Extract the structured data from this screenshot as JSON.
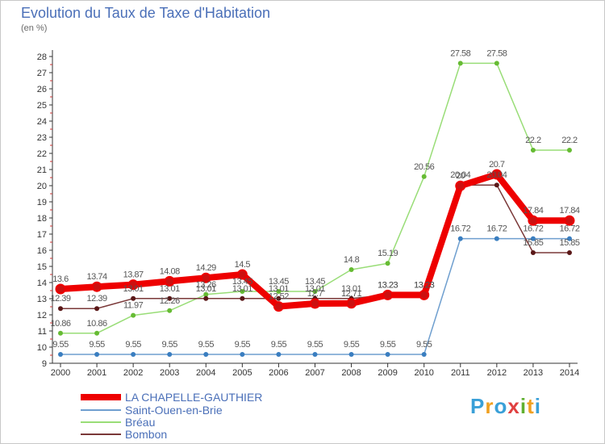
{
  "title": "Evolution du Taux de Taxe d'Habitation",
  "unit_label": "(en %)",
  "brand": {
    "letters": [
      "P",
      "r",
      "o",
      "x",
      "i",
      "t",
      "i"
    ],
    "colors": [
      "#3aa0d8",
      "#f0a020",
      "#3aa0d8",
      "#e04040",
      "#60b030",
      "#f0a020",
      "#3aa0d8"
    ]
  },
  "chart_data": {
    "type": "line",
    "x": [
      "2000",
      "2001",
      "2002",
      "2003",
      "2004",
      "2005",
      "2006",
      "2007",
      "2008",
      "2009",
      "2010",
      "2011",
      "2012",
      "2013",
      "2014"
    ],
    "ylim": [
      9,
      28
    ],
    "yticks": [
      "9",
      "10",
      "11",
      "12",
      "13",
      "14",
      "15",
      "16",
      "17",
      "18",
      "19",
      "20",
      "21",
      "22",
      "23",
      "24",
      "25",
      "26",
      "27",
      "28"
    ],
    "grid": false,
    "legend_position": "bottom-left",
    "series": [
      {
        "name": "LA CHAPELLE-GAUTHIER",
        "color": "#ee0000",
        "marker_color": "#cc1010",
        "values": [
          13.6,
          13.74,
          13.87,
          14.08,
          14.29,
          14.5,
          12.52,
          12.7,
          12.71,
          13.23,
          13.23,
          19.99,
          20.7,
          17.84,
          17.84
        ],
        "labels": [
          "13.6",
          "13.74",
          "13.87",
          "14.08",
          "14.29",
          "14.5",
          "12.52",
          "12.7",
          "12.71",
          "13.23",
          "13.23",
          "20",
          "20.7",
          "17.84",
          "17.84"
        ]
      },
      {
        "name": "Saint-Ouen-en-Brie",
        "color": "#6f9fcf",
        "marker_color": "#3a7ec0",
        "values": [
          9.55,
          9.55,
          9.55,
          9.55,
          9.55,
          9.55,
          9.55,
          9.55,
          9.55,
          9.55,
          9.55,
          16.72,
          16.72,
          16.72,
          16.72
        ],
        "labels": [
          "9.55",
          "9.55",
          "9.55",
          "9.55",
          "9.55",
          "9.55",
          "9.55",
          "9.55",
          "9.55",
          "9.55",
          "9.55",
          "16.72",
          "16.72",
          "16.72",
          "16.72"
        ]
      },
      {
        "name": "Bréau",
        "color": "#99dd77",
        "marker_color": "#66bb33",
        "values": [
          10.86,
          10.86,
          11.97,
          12.26,
          13.26,
          13.45,
          13.45,
          13.45,
          14.8,
          15.19,
          20.56,
          27.58,
          27.58,
          22.2,
          22.2
        ],
        "labels": [
          "10.86",
          "10.86",
          "11.97",
          "12.26",
          "13.26",
          "13.45",
          "13.45",
          "13.45",
          "14.8",
          "15.19",
          "20.56",
          "27.58",
          "27.58",
          "22.2",
          "22.2"
        ]
      },
      {
        "name": "Bombon",
        "color": "#7a3838",
        "marker_color": "#5a1818",
        "values": [
          12.39,
          12.39,
          13.01,
          13.01,
          13.01,
          13.01,
          13.01,
          13.01,
          13.01,
          13.23,
          13.23,
          20.04,
          20.04,
          15.85,
          15.85
        ],
        "labels": [
          "12.39",
          "12.39",
          "13.01",
          "13.01",
          "13.01",
          "13.01",
          "13.01",
          "13.01",
          "13.01",
          "13.23",
          "13.23",
          "20.04",
          "20.04",
          "15.85",
          "15.85"
        ]
      }
    ]
  }
}
